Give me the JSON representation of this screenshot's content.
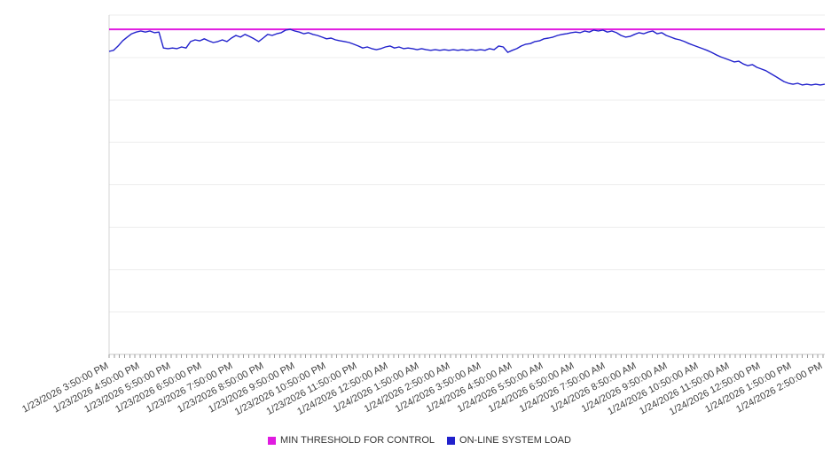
{
  "chart_data": {
    "type": "line",
    "title": "",
    "x_tick_labels": [
      "1/23/2026 3:50:00 PM",
      "1/23/2026 4:50:00 PM",
      "1/23/2026 5:50:00 PM",
      "1/23/2026 6:50:00 PM",
      "1/23/2026 7:50:00 PM",
      "1/23/2026 8:50:00 PM",
      "1/23/2026 9:50:00 PM",
      "1/23/2026 10:50:00 PM",
      "1/23/2026 11:50:00 PM",
      "1/24/2026 12:50:00 AM",
      "1/24/2026 1:50:00 AM",
      "1/24/2026 2:50:00 AM",
      "1/24/2026 3:50:00 AM",
      "1/24/2026 4:50:00 AM",
      "1/24/2026 5:50:00 AM",
      "1/24/2026 6:50:00 AM",
      "1/24/2026 7:50:00 AM",
      "1/24/2026 8:50:00 AM",
      "1/24/2026 9:50:00 AM",
      "1/24/2026 10:50:00 AM",
      "1/24/2026 11:50:00 AM",
      "1/24/2026 12:50:00 PM",
      "1/24/2026 1:50:00 PM",
      "1/24/2026 2:50:00 PM"
    ],
    "y_tick_labels": [],
    "ylim": [
      0,
      100
    ],
    "grid": "horizontal",
    "legend_position": "bottom-center",
    "series": [
      {
        "name": "MIN THRESHOLD FOR CONTROL",
        "type": "threshold-line",
        "color": "#e01be0",
        "value": 95.8
      },
      {
        "name": "ON-LINE SYSTEM LOAD",
        "type": "line",
        "color": "#2121cc",
        "values": [
          89.3,
          89.6,
          90.9,
          92.4,
          93.5,
          94.5,
          95.0,
          95.3,
          95.0,
          95.3,
          94.8,
          95.0,
          90.3,
          90.1,
          90.3,
          90.1,
          90.6,
          90.3,
          92.2,
          92.7,
          92.4,
          93.0,
          92.4,
          91.9,
          92.2,
          92.7,
          92.2,
          93.2,
          94.0,
          93.5,
          94.3,
          93.7,
          93.0,
          92.2,
          93.2,
          94.3,
          94.0,
          94.5,
          94.8,
          95.6,
          95.8,
          95.3,
          95.0,
          94.5,
          94.8,
          94.3,
          94.0,
          93.5,
          93.0,
          93.2,
          92.7,
          92.4,
          92.2,
          91.9,
          91.4,
          90.9,
          90.3,
          90.6,
          90.1,
          89.8,
          90.1,
          90.6,
          90.9,
          90.3,
          90.6,
          90.1,
          90.3,
          90.1,
          89.8,
          90.1,
          89.8,
          89.6,
          89.8,
          89.6,
          89.8,
          89.6,
          89.8,
          89.6,
          89.8,
          89.6,
          89.8,
          89.6,
          89.8,
          89.6,
          90.1,
          89.8,
          90.9,
          90.6,
          89.0,
          89.6,
          90.1,
          90.9,
          91.4,
          91.6,
          92.2,
          92.4,
          93.0,
          93.2,
          93.5,
          94.0,
          94.3,
          94.5,
          94.8,
          95.0,
          94.8,
          95.3,
          95.0,
          95.6,
          95.3,
          95.6,
          95.0,
          95.3,
          94.8,
          94.0,
          93.5,
          93.7,
          94.3,
          94.8,
          94.5,
          95.0,
          95.3,
          94.5,
          94.8,
          94.0,
          93.5,
          93.0,
          92.7,
          92.2,
          91.6,
          91.1,
          90.6,
          90.1,
          89.6,
          89.0,
          88.3,
          87.7,
          87.2,
          86.7,
          86.2,
          86.4,
          85.6,
          85.1,
          85.4,
          84.6,
          84.1,
          83.6,
          82.8,
          82.0,
          81.2,
          80.4,
          79.9,
          79.6,
          79.9,
          79.4,
          79.6,
          79.4,
          79.6,
          79.4,
          79.6
        ]
      }
    ]
  }
}
